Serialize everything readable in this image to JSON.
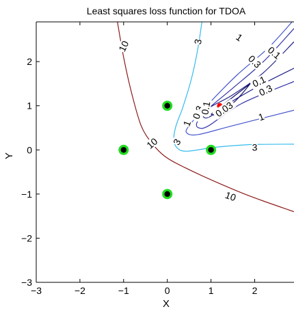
{
  "chart_data": {
    "type": "contour",
    "title": "Least squares loss function for TDOA",
    "xlabel": "X",
    "ylabel": "Y",
    "xlim": [
      -3,
      2.9
    ],
    "ylim": [
      -3,
      2.9
    ],
    "xticks": [
      -3,
      -2,
      -1,
      0,
      1,
      2
    ],
    "yticks": [
      -3,
      -2,
      -1,
      0,
      1,
      2
    ],
    "xtick_labels": [
      "−3",
      "−2",
      "−1",
      "0",
      "1",
      "2"
    ],
    "ytick_labels": [
      "−3",
      "−2",
      "−1",
      "0",
      "1",
      "2"
    ],
    "grid": false,
    "sensors": {
      "points": [
        [
          0,
          1
        ],
        [
          -1,
          0
        ],
        [
          1,
          0
        ],
        [
          0,
          -1
        ]
      ],
      "marker_fill": "#000000",
      "marker_ring": "#22dd22"
    },
    "source_estimate": {
      "x": 1.2,
      "y": 1.0,
      "color": "#ff0000"
    },
    "contours": [
      {
        "level": "10",
        "color": "#8b1a1a",
        "paths": [
          [
            [
              -1.15,
              2.95
            ],
            [
              -1.0,
              2.1
            ],
            [
              -0.82,
              1.3
            ],
            [
              -0.6,
              0.55
            ],
            [
              -0.35,
              0.15
            ],
            [
              -0.05,
              -0.15
            ],
            [
              0.4,
              -0.4
            ],
            [
              1.1,
              -0.72
            ],
            [
              1.9,
              -1.05
            ],
            [
              2.9,
              -1.4
            ]
          ]
        ],
        "labels": [
          {
            "text": "10",
            "x": -1.0,
            "y": 2.35,
            "rot": 65
          },
          {
            "text": "10",
            "x": -0.35,
            "y": 0.15,
            "rot": 40
          },
          {
            "text": "10",
            "x": 1.45,
            "y": -1.05,
            "rot": -20
          }
        ]
      },
      {
        "level": "3",
        "color": "#33bbee",
        "paths": [
          [
            [
              0.8,
              2.95
            ],
            [
              0.7,
              2.3
            ],
            [
              0.55,
              1.6
            ],
            [
              0.35,
              0.95
            ],
            [
              0.2,
              0.55
            ],
            [
              0.15,
              0.25
            ],
            [
              0.22,
              0.05
            ],
            [
              0.45,
              -0.03
            ],
            [
              1.1,
              0.06
            ],
            [
              1.9,
              0.12
            ],
            [
              2.9,
              0.13
            ]
          ]
        ],
        "labels": [
          {
            "text": "3",
            "x": 0.7,
            "y": 2.45,
            "rot": 80
          },
          {
            "text": "3",
            "x": 0.22,
            "y": 0.18,
            "rot": 60
          },
          {
            "text": "3",
            "x": 2.0,
            "y": 0.06,
            "rot": 0
          }
        ]
      },
      {
        "level": "1",
        "color": "#4455cc",
        "paths": [
          [
            [
              2.9,
              2.95
            ],
            [
              2.3,
              2.3
            ],
            [
              1.6,
              1.7
            ],
            [
              0.95,
              1.05
            ],
            [
              0.5,
              0.55
            ],
            [
              0.45,
              0.38
            ],
            [
              0.72,
              0.35
            ],
            [
              1.5,
              0.55
            ],
            [
              2.9,
              0.9
            ]
          ]
        ],
        "labels": [
          {
            "text": "1",
            "x": 1.65,
            "y": 2.55,
            "rot": -35
          },
          {
            "text": "1",
            "x": 0.45,
            "y": 0.6,
            "rot": 70
          },
          {
            "text": "1",
            "x": 2.15,
            "y": 0.75,
            "rot": 20
          }
        ]
      },
      {
        "level": "0.3",
        "color": "#3333aa",
        "paths": [
          [
            [
              2.9,
              2.75
            ],
            [
              2.2,
              2.0
            ],
            [
              1.5,
              1.4
            ],
            [
              0.9,
              0.9
            ],
            [
              0.68,
              0.62
            ],
            [
              0.72,
              0.5
            ],
            [
              0.95,
              0.55
            ],
            [
              1.7,
              1.05
            ],
            [
              2.9,
              1.55
            ]
          ]
        ],
        "labels": [
          {
            "text": "0.3",
            "x": 2.0,
            "y": 2.0,
            "rot": -45
          },
          {
            "text": "0.3",
            "x": 0.7,
            "y": 0.85,
            "rot": 70
          },
          {
            "text": "0.3",
            "x": 2.25,
            "y": 1.35,
            "rot": 25
          }
        ]
      },
      {
        "level": "0.1",
        "color": "#222288",
        "paths": [
          [
            [
              2.9,
              2.45
            ],
            [
              2.2,
              1.75
            ],
            [
              1.5,
              1.25
            ],
            [
              0.95,
              0.95
            ],
            [
              0.82,
              0.78
            ],
            [
              0.95,
              0.74
            ],
            [
              1.4,
              1.05
            ],
            [
              2.1,
              1.45
            ],
            [
              2.9,
              1.85
            ]
          ]
        ],
        "labels": [
          {
            "text": "0.1",
            "x": 2.45,
            "y": 2.2,
            "rot": -40
          },
          {
            "text": "0.1",
            "x": 0.88,
            "y": 0.95,
            "rot": 80
          },
          {
            "text": "0.1",
            "x": 2.1,
            "y": 1.55,
            "rot": 25
          }
        ]
      },
      {
        "level": "0.03",
        "color": "#111166",
        "paths": [
          [
            [
              1.9,
              1.5
            ],
            [
              1.35,
              1.08
            ],
            [
              1.05,
              0.85
            ],
            [
              1.02,
              0.8
            ],
            [
              1.15,
              0.82
            ],
            [
              1.55,
              1.1
            ],
            [
              1.9,
              1.5
            ]
          ]
        ],
        "labels": [
          {
            "text": "0.03",
            "x": 1.3,
            "y": 0.92,
            "rot": 35
          }
        ]
      }
    ]
  }
}
